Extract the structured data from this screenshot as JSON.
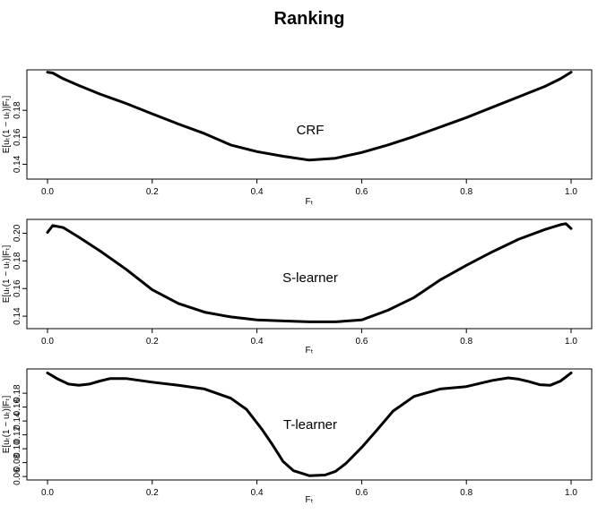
{
  "title": "Ranking",
  "chart_data": [
    {
      "type": "line",
      "annotation": "CRF",
      "xlabel": "Fₜ",
      "ylabel": "E[uₜ(1 − uₜ)|Fₜ]",
      "xlim": [
        0,
        1
      ],
      "ylim": [
        0.129,
        0.21
      ],
      "x_ticks": [
        "0.0",
        "0.2",
        "0.4",
        "0.6",
        "0.8",
        "1.0"
      ],
      "y_ticks": [
        "0.14",
        "0.16",
        "0.18"
      ],
      "series": [
        {
          "x": [
            0.0,
            0.01,
            0.03,
            0.06,
            0.1,
            0.15,
            0.2,
            0.25,
            0.3,
            0.35,
            0.4,
            0.45,
            0.5,
            0.55,
            0.6,
            0.65,
            0.7,
            0.75,
            0.8,
            0.85,
            0.9,
            0.95,
            0.98,
            1.0
          ],
          "y": [
            0.2083,
            0.2077,
            0.2034,
            0.1984,
            0.1921,
            0.1851,
            0.1774,
            0.1698,
            0.1627,
            0.1543,
            0.1494,
            0.1459,
            0.1431,
            0.1445,
            0.1487,
            0.1543,
            0.1606,
            0.1676,
            0.1746,
            0.1823,
            0.19,
            0.1977,
            0.2034,
            0.2083
          ]
        }
      ]
    },
    {
      "type": "line",
      "annotation": "S-learner",
      "xlabel": "Fₜ",
      "ylabel": "E[uₜ(1 − uₜ)|Fₜ]",
      "xlim": [
        0,
        1
      ],
      "ylim": [
        0.131,
        0.21
      ],
      "x_ticks": [
        "0.0",
        "0.2",
        "0.4",
        "0.6",
        "0.8",
        "1.0"
      ],
      "y_ticks": [
        "0.14",
        "0.16",
        "0.18",
        "0.20"
      ],
      "series": [
        {
          "x": [
            0.0,
            0.01,
            0.03,
            0.06,
            0.1,
            0.15,
            0.2,
            0.25,
            0.3,
            0.35,
            0.4,
            0.45,
            0.5,
            0.55,
            0.6,
            0.65,
            0.7,
            0.75,
            0.8,
            0.85,
            0.9,
            0.95,
            0.98,
            0.99,
            1.0
          ],
          "y": [
            0.2006,
            0.2055,
            0.2041,
            0.1971,
            0.1873,
            0.1739,
            0.1591,
            0.1492,
            0.1429,
            0.1395,
            0.1373,
            0.1366,
            0.1359,
            0.1359,
            0.1373,
            0.1443,
            0.1535,
            0.1662,
            0.1768,
            0.1866,
            0.1957,
            0.2027,
            0.2062,
            0.2069,
            0.2034
          ]
        }
      ]
    },
    {
      "type": "line",
      "annotation": "T-learner",
      "xlabel": "Fₜ",
      "ylabel": "E[uₜ(1 − uₜ)|Fₜ]",
      "xlim": [
        0,
        1
      ],
      "ylim": [
        0.055,
        0.215
      ],
      "x_ticks": [
        "0.0",
        "0.2",
        "0.4",
        "0.6",
        "0.8",
        "1.0"
      ],
      "y_ticks": [
        "0.06",
        "0.08",
        "0.10",
        "0.12",
        "0.14",
        "0.16",
        "0.18"
      ],
      "series": [
        {
          "x": [
            0.0,
            0.02,
            0.04,
            0.06,
            0.08,
            0.1,
            0.12,
            0.15,
            0.2,
            0.25,
            0.3,
            0.35,
            0.38,
            0.41,
            0.43,
            0.45,
            0.47,
            0.5,
            0.53,
            0.55,
            0.57,
            0.6,
            0.63,
            0.66,
            0.7,
            0.75,
            0.8,
            0.85,
            0.88,
            0.9,
            0.92,
            0.94,
            0.96,
            0.98,
            1.0
          ],
          "y": [
            0.2092,
            0.2003,
            0.1932,
            0.1914,
            0.1932,
            0.1976,
            0.2012,
            0.2012,
            0.1959,
            0.1914,
            0.1861,
            0.1728,
            0.1568,
            0.1276,
            0.1054,
            0.0816,
            0.0683,
            0.0612,
            0.0621,
            0.0674,
            0.0789,
            0.1018,
            0.1276,
            0.1542,
            0.1754,
            0.1861,
            0.1896,
            0.1985,
            0.2021,
            0.2003,
            0.1967,
            0.1923,
            0.1914,
            0.1976,
            0.2092
          ]
        }
      ]
    }
  ]
}
